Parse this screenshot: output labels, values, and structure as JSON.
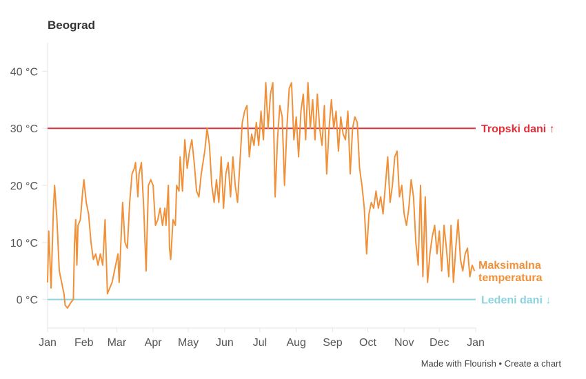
{
  "title": "Beograd",
  "footer": {
    "made_with": "Made with Flourish",
    "separator": "•",
    "create": "Create a chart"
  },
  "colors": {
    "line": "#f0913a",
    "tropical": "#e0313b",
    "frost": "#8cd3df",
    "grid": "#e6e6e6"
  },
  "chart_data": {
    "type": "line",
    "title": "Beograd",
    "xlabel": "",
    "ylabel": "",
    "ylim": [
      -5,
      45
    ],
    "xlim": [
      0,
      365
    ],
    "y_ticks": [
      {
        "v": 0,
        "label": "0 °C"
      },
      {
        "v": 10,
        "label": "10 °C"
      },
      {
        "v": 20,
        "label": "20 °C"
      },
      {
        "v": 30,
        "label": "30 °C"
      },
      {
        "v": 40,
        "label": "40 °C"
      }
    ],
    "x_ticks": [
      {
        "v": 0,
        "label": "Jan"
      },
      {
        "v": 31,
        "label": "Feb"
      },
      {
        "v": 59,
        "label": "Mar"
      },
      {
        "v": 90,
        "label": "Apr"
      },
      {
        "v": 120,
        "label": "May"
      },
      {
        "v": 151,
        "label": "Jun"
      },
      {
        "v": 181,
        "label": "Jul"
      },
      {
        "v": 212,
        "label": "Aug"
      },
      {
        "v": 243,
        "label": "Sep"
      },
      {
        "v": 273,
        "label": "Oct"
      },
      {
        "v": 304,
        "label": "Nov"
      },
      {
        "v": 334,
        "label": "Dec"
      },
      {
        "v": 365,
        "label": "Jan"
      }
    ],
    "reference_lines": [
      {
        "name": "Tropski dani ↑",
        "value": 30
      },
      {
        "name": "Ledeni dani ↓",
        "value": 0
      }
    ],
    "series": [
      {
        "name": "Maksimalna temperatura",
        "x": [
          0,
          1,
          3,
          5,
          6,
          8,
          10,
          12,
          14,
          15,
          17,
          20,
          22,
          23,
          24,
          25,
          26,
          28,
          30,
          31,
          33,
          35,
          37,
          39,
          41,
          43,
          45,
          47,
          49,
          51,
          53,
          55,
          58,
          60,
          61,
          64,
          66,
          68,
          70,
          72,
          74,
          75,
          77,
          78,
          80,
          82,
          84,
          86,
          88,
          90,
          92,
          94,
          96,
          98,
          100,
          101,
          103,
          104,
          105,
          107,
          109,
          110,
          112,
          113,
          115,
          117,
          119,
          121,
          123,
          125,
          127,
          129,
          131,
          134,
          136,
          138,
          140,
          142,
          144,
          146,
          148,
          150,
          152,
          154,
          156,
          158,
          160,
          162,
          164,
          166,
          168,
          170,
          172,
          174,
          176,
          178,
          180,
          182,
          184,
          186,
          188,
          190,
          192,
          194,
          196,
          198,
          200,
          202,
          204,
          206,
          208,
          210,
          212,
          214,
          216,
          218,
          220,
          222,
          224,
          226,
          228,
          230,
          232,
          234,
          236,
          238,
          240,
          242,
          244,
          246,
          248,
          250,
          252,
          254,
          256,
          258,
          260,
          262,
          264,
          266,
          268,
          270,
          272,
          274,
          276,
          278,
          280,
          282,
          284,
          286,
          288,
          290,
          292,
          294,
          296,
          298,
          300,
          302,
          304,
          306,
          308,
          310,
          312,
          314,
          316,
          318,
          320,
          322,
          324,
          326,
          328,
          330,
          332,
          334,
          336,
          338,
          340,
          342,
          344,
          346,
          348,
          350,
          352,
          354,
          356,
          358,
          360,
          362,
          364
        ],
        "y": [
          3,
          12,
          2,
          16,
          20,
          14,
          5,
          3,
          1,
          -1,
          -1.5,
          -0.5,
          0,
          10,
          14,
          6,
          13,
          14,
          19,
          21,
          17,
          15,
          10,
          7,
          8,
          6,
          8,
          6,
          14,
          1,
          2,
          3,
          6,
          8,
          3,
          17,
          10,
          9,
          17,
          22,
          23,
          24,
          18,
          22,
          24,
          16,
          5,
          20,
          21,
          20,
          13,
          14,
          16,
          13,
          16,
          13,
          20,
          9,
          7,
          14,
          13,
          20,
          19,
          25,
          19,
          28,
          23,
          26,
          28,
          24,
          19,
          18,
          22,
          26,
          30,
          27,
          20,
          17,
          21,
          17,
          25,
          16,
          22,
          24,
          18,
          25,
          20,
          17,
          24,
          31,
          33,
          34,
          25,
          29,
          27,
          31,
          27,
          33,
          28,
          38,
          30,
          36,
          38,
          18,
          28,
          34,
          32,
          20,
          30,
          37,
          38,
          28,
          32,
          25,
          33,
          36,
          28,
          38,
          30,
          35,
          28,
          36,
          30,
          27,
          34,
          22,
          30,
          35,
          30,
          33,
          26,
          32,
          29,
          28,
          33,
          22,
          30,
          32,
          31,
          23,
          20,
          16,
          8,
          15,
          17,
          16,
          19,
          16,
          18,
          15,
          20,
          25,
          17,
          20,
          25,
          26,
          18,
          20,
          15,
          13,
          16,
          21,
          18,
          10,
          6,
          20,
          4,
          18,
          3,
          8,
          11,
          13,
          8,
          12,
          5,
          13,
          9,
          4,
          13,
          3,
          9,
          14,
          7,
          5,
          8,
          9,
          4,
          6,
          5
        ]
      }
    ]
  }
}
